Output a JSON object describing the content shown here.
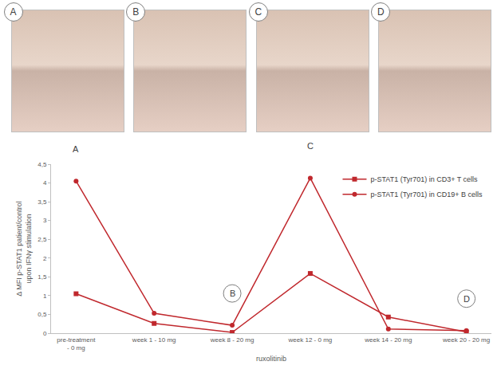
{
  "photo_panels": [
    "A",
    "B",
    "C",
    "D"
  ],
  "chart_data": {
    "type": "line",
    "categories": [
      "pre-treatment - 0 mg",
      "week 1 - 10 mg",
      "week 8 - 20 mg",
      "week 12 - 0 mg",
      "week 14 - 20 mg",
      "week 20 - 20 mg"
    ],
    "series": [
      {
        "name": "p-STAT1 (Tyr701) in CD3+ T cells",
        "color": "#c0282d",
        "marker": "square",
        "values": [
          1.05,
          0.26,
          0.02,
          1.59,
          0.43,
          0.03
        ]
      },
      {
        "name": "p-STAT1 (Tyr701) in CD19+ B cells",
        "color": "#c0282d",
        "marker": "circle",
        "values": [
          4.05,
          0.53,
          0.21,
          4.13,
          0.11,
          0.07
        ]
      }
    ],
    "xlabel": "ruxolitinib",
    "ylabel": "Δ MFI p-STAT1 patient/control upon IFNγ stimulation",
    "ylim": [
      0,
      4.5
    ],
    "yticks": [
      0,
      {
        "value": 0.5,
        "label": "0,5"
      },
      1,
      {
        "value": 1.5,
        "label": "1,5"
      },
      2,
      {
        "value": 2.5,
        "label": "2,5"
      },
      3,
      {
        "value": 3.5,
        "label": "3,5"
      },
      4,
      {
        "value": 4.5,
        "label": "4,5"
      }
    ],
    "grid": false,
    "legend": "upper right",
    "annotations": [
      {
        "text": "A",
        "category": "pre-treatment - 0 mg"
      },
      {
        "text": "B",
        "category": "week 8 - 20 mg"
      },
      {
        "text": "C",
        "category": "week 12 - 0 mg"
      },
      {
        "text": "D",
        "category": "week 20 - 20 mg"
      }
    ]
  }
}
